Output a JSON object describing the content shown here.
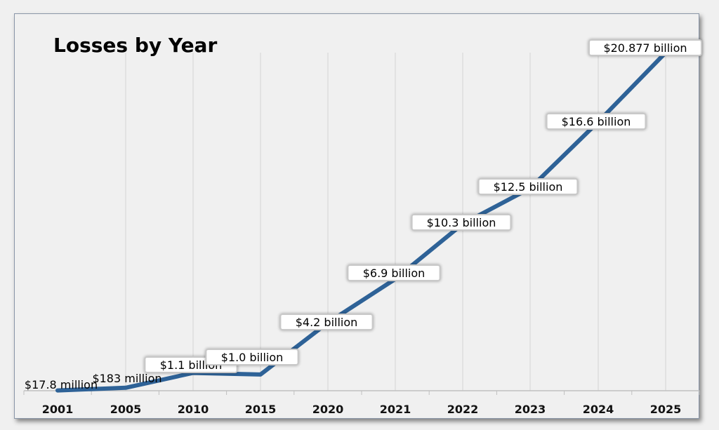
{
  "chart_data": {
    "type": "line",
    "title": "Losses by Year",
    "xlabel": "",
    "ylabel": "",
    "categories": [
      "2001",
      "2005",
      "2010",
      "2015",
      "2020",
      "2021",
      "2022",
      "2023",
      "2024",
      "2025"
    ],
    "series": [
      {
        "values": [
          0.0178,
          0.183,
          1.1,
          1.0,
          4.2,
          6.9,
          10.3,
          12.5,
          16.6,
          20.877
        ],
        "color": "#2e6297"
      }
    ],
    "data_labels": [
      "$17.8 million",
      "$183 million",
      "$1.1 billion",
      "$1.0 billion",
      "$4.2 billion",
      "$6.9 billion",
      "$10.3 billion",
      "$12.5 billion",
      "$16.6 billion",
      "$20.877 billion"
    ],
    "ylim": [
      0,
      21
    ],
    "unit": "billion USD",
    "grid": "vertical lines",
    "legend": "none"
  }
}
